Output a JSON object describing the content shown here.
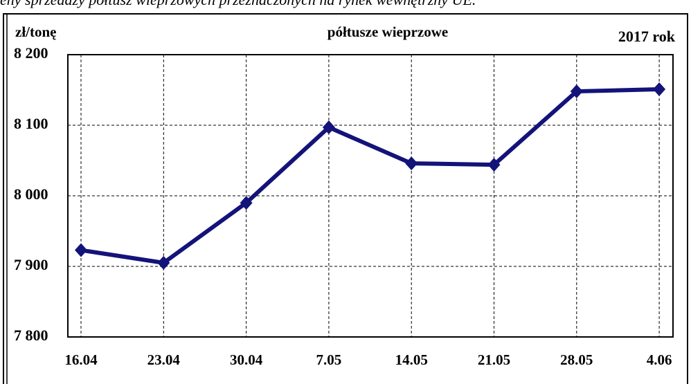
{
  "chart_data": {
    "type": "line",
    "caption": "eny sprzedaży półtusz wieprzowych przeznaczonych na rynek wewnętrzny UE.",
    "title": "półtusze wieprzowe",
    "y_label": "zł/tonę",
    "annotation": "2017 rok",
    "categories": [
      "16.04",
      "23.04",
      "30.04",
      "7.05",
      "14.05",
      "21.05",
      "28.05",
      "4.06"
    ],
    "series": [
      {
        "name": "półtusze wieprzowe",
        "color": "#13137a",
        "values": [
          7923,
          7905,
          7990,
          8097,
          8046,
          8044,
          8148,
          8151
        ]
      }
    ],
    "ylim": [
      7800,
      8200
    ],
    "yticks": [
      {
        "value": 7800,
        "label": "7 800"
      },
      {
        "value": 7900,
        "label": "7 900"
      },
      {
        "value": 8000,
        "label": "8 000"
      },
      {
        "value": 8100,
        "label": "8 100"
      },
      {
        "value": 8200,
        "label": "8 200"
      }
    ],
    "grid": true
  }
}
